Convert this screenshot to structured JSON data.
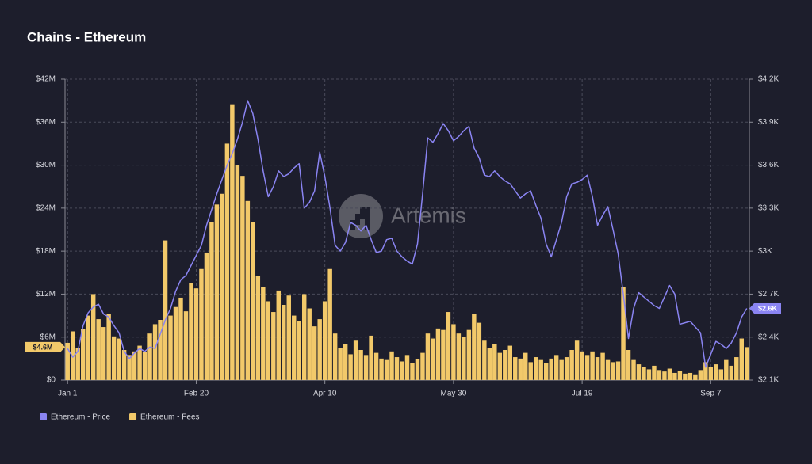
{
  "chart_data": {
    "type": "bar",
    "title": "Chains - Ethereum",
    "watermark": "Artemis",
    "categories": [
      "Jan 1",
      null,
      null,
      null,
      null,
      null,
      null,
      null,
      null,
      null,
      null,
      null,
      null,
      null,
      null,
      null,
      null,
      null,
      null,
      null,
      null,
      null,
      null,
      null,
      null,
      "Feb 20",
      null,
      null,
      null,
      null,
      null,
      null,
      null,
      null,
      null,
      null,
      null,
      null,
      null,
      null,
      null,
      null,
      null,
      null,
      null,
      null,
      null,
      null,
      null,
      null,
      "Apr 10",
      null,
      null,
      null,
      null,
      null,
      null,
      null,
      null,
      null,
      null,
      null,
      null,
      null,
      null,
      null,
      null,
      null,
      null,
      null,
      null,
      null,
      null,
      null,
      null,
      "May 30",
      null,
      null,
      null,
      null,
      null,
      null,
      null,
      null,
      null,
      null,
      null,
      null,
      null,
      null,
      null,
      null,
      null,
      null,
      null,
      null,
      null,
      null,
      null,
      null,
      "Jul 19",
      null,
      null,
      null,
      null,
      null,
      null,
      null,
      null,
      null,
      null,
      null,
      null,
      null,
      null,
      null,
      null,
      null,
      null,
      null,
      null,
      null,
      null,
      null,
      null,
      "Sep 7",
      null,
      null,
      null,
      null,
      null,
      null,
      null
    ],
    "series": [
      {
        "name": "Ethereum - Price",
        "type": "line",
        "axis": "y2",
        "color": "#8a84f2",
        "end_label": "$2.6K",
        "values": [
          2320,
          2260,
          2300,
          2480,
          2570,
          2610,
          2630,
          2560,
          2540,
          2480,
          2430,
          2300,
          2250,
          2290,
          2320,
          2300,
          2330,
          2320,
          2420,
          2520,
          2600,
          2720,
          2800,
          2830,
          2900,
          2970,
          3040,
          3180,
          3290,
          3400,
          3500,
          3600,
          3680,
          3780,
          3900,
          4050,
          3960,
          3780,
          3560,
          3380,
          3450,
          3560,
          3520,
          3540,
          3580,
          3610,
          3300,
          3340,
          3420,
          3690,
          3520,
          3300,
          3040,
          3000,
          3060,
          3200,
          3180,
          3140,
          3180,
          3080,
          2990,
          3000,
          3080,
          3090,
          3000,
          2960,
          2930,
          2910,
          3050,
          3400,
          3790,
          3760,
          3820,
          3890,
          3840,
          3770,
          3800,
          3840,
          3870,
          3720,
          3650,
          3530,
          3520,
          3560,
          3520,
          3490,
          3470,
          3420,
          3370,
          3400,
          3420,
          3320,
          3230,
          3050,
          2960,
          3080,
          3200,
          3380,
          3470,
          3480,
          3500,
          3530,
          3380,
          3180,
          3250,
          3310,
          3150,
          2980,
          2700,
          2390,
          2600,
          2710,
          2680,
          2650,
          2620,
          2600,
          2680,
          2760,
          2700,
          2490,
          2500,
          2510,
          2470,
          2430,
          2190,
          2280,
          2370,
          2350,
          2320,
          2360,
          2430,
          2540,
          2600
        ]
      },
      {
        "name": "Ethereum - Fees",
        "type": "bar",
        "color": "#f2c96a",
        "end_label": "$4.6M",
        "values": [
          5.2,
          6.8,
          4.5,
          7.1,
          9.0,
          12.0,
          8.5,
          7.4,
          9.2,
          6.1,
          5.8,
          4.2,
          3.5,
          4.0,
          4.8,
          3.9,
          6.5,
          7.8,
          8.4,
          19.5,
          9.0,
          10.2,
          11.5,
          9.6,
          13.5,
          12.8,
          15.5,
          17.8,
          22.0,
          24.5,
          26.0,
          33.0,
          38.5,
          30.0,
          28.5,
          25.0,
          22.0,
          14.5,
          13.0,
          11.0,
          9.5,
          12.5,
          10.5,
          11.8,
          9.0,
          8.2,
          12.0,
          10.0,
          7.5,
          8.5,
          11.0,
          15.5,
          6.5,
          4.5,
          5.0,
          3.6,
          5.5,
          4.2,
          3.5,
          6.2,
          3.8,
          3.0,
          2.8,
          4.0,
          3.2,
          2.6,
          3.5,
          2.4,
          2.9,
          3.8,
          6.5,
          5.8,
          7.2,
          7.0,
          9.5,
          7.8,
          6.5,
          6.0,
          7.0,
          9.2,
          8.0,
          5.5,
          4.5,
          5.0,
          3.8,
          4.2,
          4.8,
          3.2,
          3.0,
          3.8,
          2.5,
          3.2,
          2.8,
          2.4,
          3.0,
          3.5,
          2.8,
          3.2,
          4.2,
          5.5,
          4.0,
          3.5,
          4.0,
          3.2,
          3.8,
          2.8,
          2.5,
          2.6,
          13.0,
          4.2,
          2.8,
          2.2,
          1.8,
          1.5,
          2.0,
          1.4,
          1.2,
          1.6,
          1.0,
          1.3,
          0.9,
          1.0,
          0.8,
          1.4,
          2.5,
          1.8,
          2.2,
          1.5,
          2.8,
          2.0,
          3.2,
          5.8,
          4.6
        ]
      }
    ],
    "ylim": [
      0,
      42
    ],
    "yticks": [
      {
        "value": 0,
        "label": "$0"
      },
      {
        "value": 6,
        "label": "$6M"
      },
      {
        "value": 12,
        "label": "$12M"
      },
      {
        "value": 18,
        "label": "$18M"
      },
      {
        "value": 24,
        "label": "$24M"
      },
      {
        "value": 30,
        "label": "$30M"
      },
      {
        "value": 36,
        "label": "$36M"
      },
      {
        "value": 42,
        "label": "$42M"
      }
    ],
    "y2lim": [
      2100,
      4200
    ],
    "y2ticks": [
      {
        "value": 2100,
        "label": "$2.1K"
      },
      {
        "value": 2400,
        "label": "$2.4K"
      },
      {
        "value": 2700,
        "label": "$2.7K"
      },
      {
        "value": 3000,
        "label": "$3K"
      },
      {
        "value": 3300,
        "label": "$3.3K"
      },
      {
        "value": 3600,
        "label": "$3.6K"
      },
      {
        "value": 3900,
        "label": "$3.9K"
      },
      {
        "value": 4200,
        "label": "$4.2K"
      }
    ],
    "grid": true
  }
}
